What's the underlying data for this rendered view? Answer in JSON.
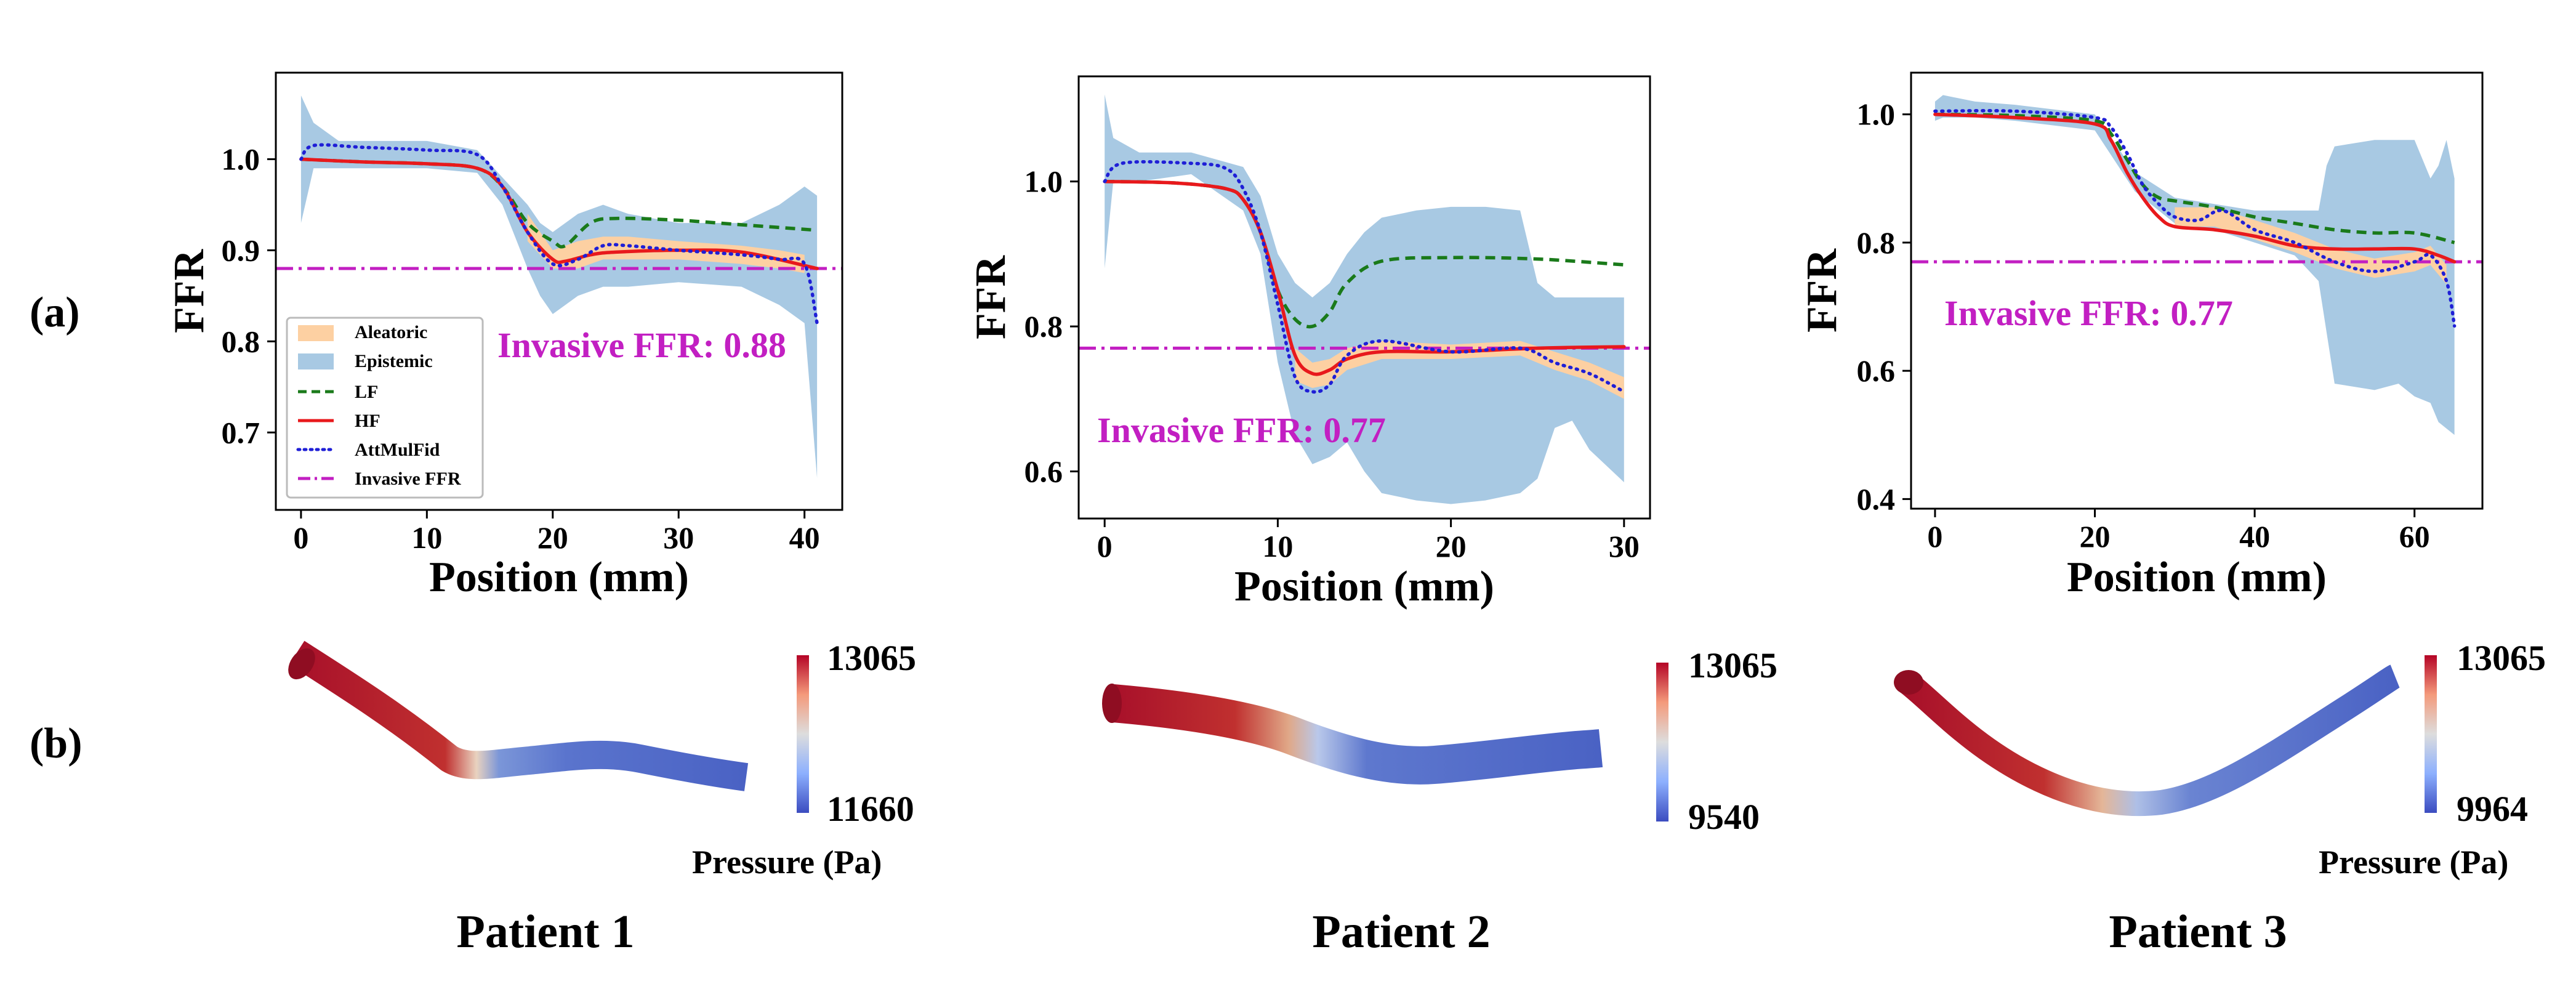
{
  "labels": {
    "panel_a": "(a)",
    "panel_b": "(b)"
  },
  "colors": {
    "epistemic": "#a8c9e3",
    "aleatoric": "#fdd0a2",
    "lf": "#1a7a1a",
    "hf": "#e8191c",
    "attmulfid": "#1f1fd6",
    "invasive": "#c21fc2",
    "cmap_low": "#3b4cc0",
    "cmap_mid": "#dddddd",
    "cmap_high": "#b40426"
  },
  "legend": [
    "Aleatoric",
    "Epistemic",
    "LF",
    "HF",
    "AttMulFid",
    "Invasive FFR"
  ],
  "chart_data": [
    {
      "type": "line",
      "title": "",
      "xlabel": "Position (mm)",
      "ylabel": "FFR",
      "xlim": [
        -2,
        43
      ],
      "ylim": [
        0.615,
        1.095
      ],
      "xticks": [
        0,
        10,
        20,
        30,
        40
      ],
      "yticks": [
        0.7,
        0.8,
        0.9,
        1.0
      ],
      "xtick_labels": [
        "0",
        "10",
        "20",
        "30",
        "40"
      ],
      "ytick_labels": [
        "0.7",
        "0.8",
        "0.9",
        "1.0"
      ],
      "invasive_ffr": 0.88,
      "annotation": "Invasive FFR: 0.88",
      "legend_position": "lower-left",
      "series": [
        {
          "name": "LF",
          "x": [
            0,
            5,
            10,
            14,
            16,
            18,
            20,
            21,
            23,
            25,
            30,
            35,
            41
          ],
          "y": [
            1.0,
            0.997,
            0.995,
            0.99,
            0.97,
            0.93,
            0.91,
            0.905,
            0.93,
            0.935,
            0.933,
            0.928,
            0.922
          ]
        },
        {
          "name": "HF",
          "x": [
            0,
            5,
            10,
            14,
            16,
            18,
            20,
            21,
            23,
            25,
            30,
            35,
            41
          ],
          "y": [
            1.0,
            0.997,
            0.995,
            0.99,
            0.97,
            0.92,
            0.89,
            0.888,
            0.895,
            0.898,
            0.9,
            0.898,
            0.88
          ]
        },
        {
          "name": "AttMulFid",
          "x": [
            0,
            1,
            5,
            10,
            14,
            16,
            18,
            20,
            22,
            24,
            26,
            30,
            35,
            38,
            40,
            41
          ],
          "y": [
            1.0,
            1.015,
            1.013,
            1.01,
            1.005,
            0.97,
            0.92,
            0.885,
            0.89,
            0.905,
            0.905,
            0.9,
            0.895,
            0.89,
            0.885,
            0.82
          ]
        }
      ],
      "epistemic_band": {
        "x": [
          0,
          1,
          3,
          6,
          10,
          14,
          16,
          18,
          19,
          20,
          21,
          22,
          24,
          26,
          30,
          35,
          38,
          40,
          41
        ],
        "lower": [
          0.93,
          0.99,
          0.99,
          0.99,
          0.99,
          0.985,
          0.95,
          0.88,
          0.85,
          0.83,
          0.84,
          0.85,
          0.86,
          0.86,
          0.865,
          0.86,
          0.84,
          0.82,
          0.65
        ],
        "upper": [
          1.07,
          1.04,
          1.02,
          1.02,
          1.02,
          1.01,
          0.98,
          0.95,
          0.93,
          0.92,
          0.93,
          0.94,
          0.95,
          0.94,
          0.93,
          0.93,
          0.95,
          0.97,
          0.96
        ]
      },
      "aleatoric_band": {
        "x": [
          18,
          20,
          22,
          24,
          26,
          30,
          35,
          38,
          40
        ],
        "lower": [
          0.91,
          0.88,
          0.88,
          0.89,
          0.89,
          0.89,
          0.885,
          0.88,
          0.875
        ],
        "upper": [
          0.94,
          0.9,
          0.91,
          0.915,
          0.915,
          0.91,
          0.905,
          0.9,
          0.895
        ]
      }
    },
    {
      "type": "line",
      "title": "",
      "xlabel": "Position (mm)",
      "ylabel": "FFR",
      "xlim": [
        -1.5,
        31.5
      ],
      "ylim": [
        0.535,
        1.145
      ],
      "xticks": [
        0,
        10,
        20,
        30
      ],
      "yticks": [
        0.6,
        0.8,
        1.0
      ],
      "xtick_labels": [
        "0",
        "10",
        "20",
        "30"
      ],
      "ytick_labels": [
        "0.6",
        "0.8",
        "1.0"
      ],
      "invasive_ffr": 0.77,
      "annotation": "Invasive FFR: 0.77",
      "series": [
        {
          "name": "LF",
          "x": [
            0,
            4,
            7,
            8,
            9,
            10,
            11,
            12,
            13,
            14,
            16,
            20,
            25,
            30
          ],
          "y": [
            1.0,
            0.998,
            0.99,
            0.975,
            0.93,
            0.85,
            0.81,
            0.8,
            0.82,
            0.86,
            0.89,
            0.895,
            0.893,
            0.885
          ]
        },
        {
          "name": "HF",
          "x": [
            0,
            4,
            7,
            8,
            9,
            10,
            11,
            12,
            13,
            14,
            16,
            20,
            25,
            30
          ],
          "y": [
            1.0,
            0.998,
            0.99,
            0.975,
            0.93,
            0.85,
            0.76,
            0.735,
            0.74,
            0.755,
            0.765,
            0.765,
            0.77,
            0.772
          ]
        },
        {
          "name": "AttMulFid",
          "x": [
            0,
            1,
            5,
            7,
            8,
            9,
            10,
            11,
            12,
            13,
            14,
            16,
            20,
            24,
            26,
            28,
            30
          ],
          "y": [
            1.0,
            1.025,
            1.025,
            1.018,
            0.99,
            0.93,
            0.83,
            0.73,
            0.71,
            0.72,
            0.76,
            0.78,
            0.765,
            0.77,
            0.75,
            0.735,
            0.71
          ]
        }
      ],
      "epistemic_band": {
        "x": [
          0,
          0.5,
          2,
          5,
          8,
          9,
          10,
          11,
          12,
          13,
          14,
          15,
          16,
          18,
          20,
          22,
          24,
          25,
          26,
          27,
          28,
          30
        ],
        "lower": [
          0.88,
          1.0,
          1.0,
          1.01,
          0.96,
          0.9,
          0.75,
          0.65,
          0.61,
          0.62,
          0.64,
          0.6,
          0.57,
          0.56,
          0.555,
          0.56,
          0.57,
          0.59,
          0.66,
          0.67,
          0.63,
          0.585
        ],
        "upper": [
          1.12,
          1.06,
          1.04,
          1.04,
          1.02,
          0.98,
          0.9,
          0.86,
          0.84,
          0.86,
          0.9,
          0.93,
          0.95,
          0.96,
          0.965,
          0.965,
          0.96,
          0.86,
          0.84,
          0.84,
          0.84,
          0.84
        ]
      },
      "aleatoric_band": {
        "x": [
          11,
          12,
          13,
          14,
          16,
          20,
          24,
          26,
          28,
          30
        ],
        "lower": [
          0.725,
          0.715,
          0.72,
          0.74,
          0.755,
          0.755,
          0.76,
          0.74,
          0.725,
          0.7
        ],
        "upper": [
          0.77,
          0.75,
          0.755,
          0.77,
          0.78,
          0.775,
          0.78,
          0.765,
          0.75,
          0.73
        ]
      }
    },
    {
      "type": "line",
      "title": "",
      "xlabel": "Position (mm)",
      "ylabel": "FFR",
      "xlim": [
        -3,
        68.5
      ],
      "ylim": [
        0.385,
        1.065
      ],
      "xticks": [
        0,
        20,
        40,
        60
      ],
      "yticks": [
        0.4,
        0.6,
        0.8,
        1.0
      ],
      "xtick_labels": [
        "0",
        "20",
        "40",
        "60"
      ],
      "ytick_labels": [
        "0.4",
        "0.6",
        "0.8",
        "1.0"
      ],
      "invasive_ffr": 0.77,
      "annotation": "Invasive FFR: 0.77",
      "series": [
        {
          "name": "LF",
          "x": [
            0,
            10,
            20,
            22,
            24,
            26,
            28,
            30,
            35,
            40,
            45,
            50,
            55,
            60,
            65
          ],
          "y": [
            1.0,
            0.998,
            0.99,
            0.97,
            0.93,
            0.89,
            0.87,
            0.865,
            0.855,
            0.84,
            0.83,
            0.82,
            0.815,
            0.815,
            0.8
          ]
        },
        {
          "name": "HF",
          "x": [
            0,
            10,
            20,
            22,
            24,
            26,
            28,
            30,
            35,
            40,
            45,
            50,
            55,
            60,
            63,
            65
          ],
          "y": [
            1.0,
            0.995,
            0.985,
            0.96,
            0.91,
            0.87,
            0.84,
            0.825,
            0.82,
            0.81,
            0.795,
            0.79,
            0.79,
            0.79,
            0.78,
            0.77
          ]
        },
        {
          "name": "AttMulFid",
          "x": [
            0,
            10,
            20,
            22,
            24,
            26,
            28,
            30,
            33,
            36,
            40,
            45,
            50,
            55,
            60,
            62,
            64,
            65
          ],
          "y": [
            1.005,
            1.005,
            0.995,
            0.98,
            0.94,
            0.89,
            0.86,
            0.84,
            0.835,
            0.85,
            0.82,
            0.8,
            0.77,
            0.755,
            0.77,
            0.78,
            0.74,
            0.67
          ]
        }
      ],
      "epistemic_band": {
        "x": [
          0,
          1,
          5,
          10,
          20,
          25,
          30,
          35,
          40,
          45,
          48,
          49,
          50,
          55,
          58,
          60,
          62,
          63,
          64,
          65
        ],
        "lower": [
          0.99,
          0.995,
          0.995,
          0.99,
          0.975,
          0.88,
          0.83,
          0.82,
          0.8,
          0.78,
          0.74,
          0.66,
          0.58,
          0.57,
          0.58,
          0.56,
          0.55,
          0.52,
          0.51,
          0.5
        ],
        "upper": [
          1.02,
          1.03,
          1.02,
          1.015,
          1.0,
          0.91,
          0.87,
          0.86,
          0.85,
          0.85,
          0.85,
          0.92,
          0.95,
          0.96,
          0.96,
          0.96,
          0.9,
          0.92,
          0.96,
          0.9
        ]
      },
      "aleatoric_band": {
        "x": [
          30,
          35,
          40,
          45,
          50,
          55,
          60,
          62,
          64
        ],
        "lower": [
          0.825,
          0.825,
          0.805,
          0.785,
          0.76,
          0.745,
          0.755,
          0.765,
          0.735
        ],
        "upper": [
          0.855,
          0.855,
          0.835,
          0.815,
          0.79,
          0.775,
          0.785,
          0.795,
          0.765
        ]
      }
    }
  ],
  "vessels": [
    {
      "name": "Patient 1",
      "cb_max": "13065",
      "cb_min": "11660",
      "cb_label": "Pressure (Pa)"
    },
    {
      "name": "Patient 2",
      "cb_max": "13065",
      "cb_min": "9540",
      "cb_label": ""
    },
    {
      "name": "Patient 3",
      "cb_max": "13065",
      "cb_min": "9964",
      "cb_label": "Pressure (Pa)"
    }
  ]
}
